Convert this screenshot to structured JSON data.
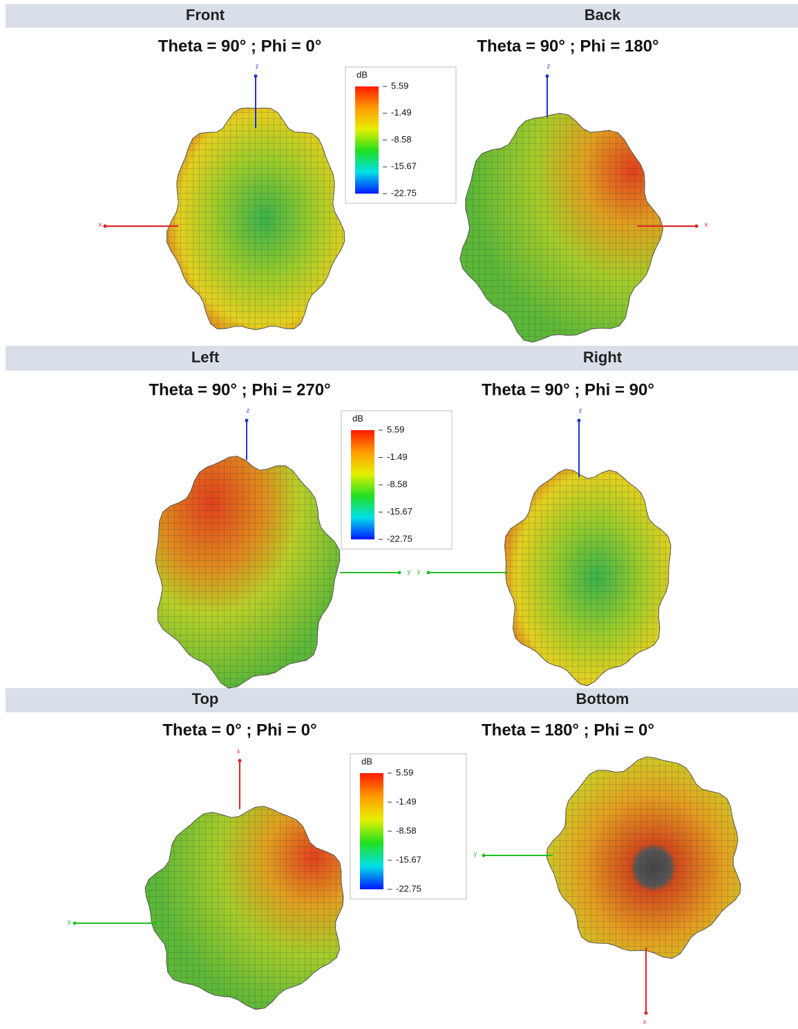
{
  "views": [
    {
      "title": "Front",
      "angles": "Theta = 90° ; Phi = 0°",
      "axes": [
        "z",
        "x"
      ]
    },
    {
      "title": "Back",
      "angles": "Theta = 90° ; Phi = 180°",
      "axes": [
        "z",
        "x"
      ]
    },
    {
      "title": "Left",
      "angles": "Theta = 90° ; Phi = 270°",
      "axes": [
        "z",
        "y"
      ]
    },
    {
      "title": "Right",
      "angles": "Theta = 90° ; Phi = 90°",
      "axes": [
        "z",
        "y"
      ]
    },
    {
      "title": "Top",
      "angles": "Theta = 0° ; Phi = 0°",
      "axes": [
        "x",
        "y"
      ]
    },
    {
      "title": "Bottom",
      "angles": "Theta = 180° ; Phi = 0°",
      "axes": [
        "y",
        "x"
      ]
    }
  ],
  "colorbar": {
    "unit": "dB",
    "labels": [
      "5.59",
      "-1.49",
      "-8.58",
      "-15.67",
      "-22.75"
    ]
  }
}
